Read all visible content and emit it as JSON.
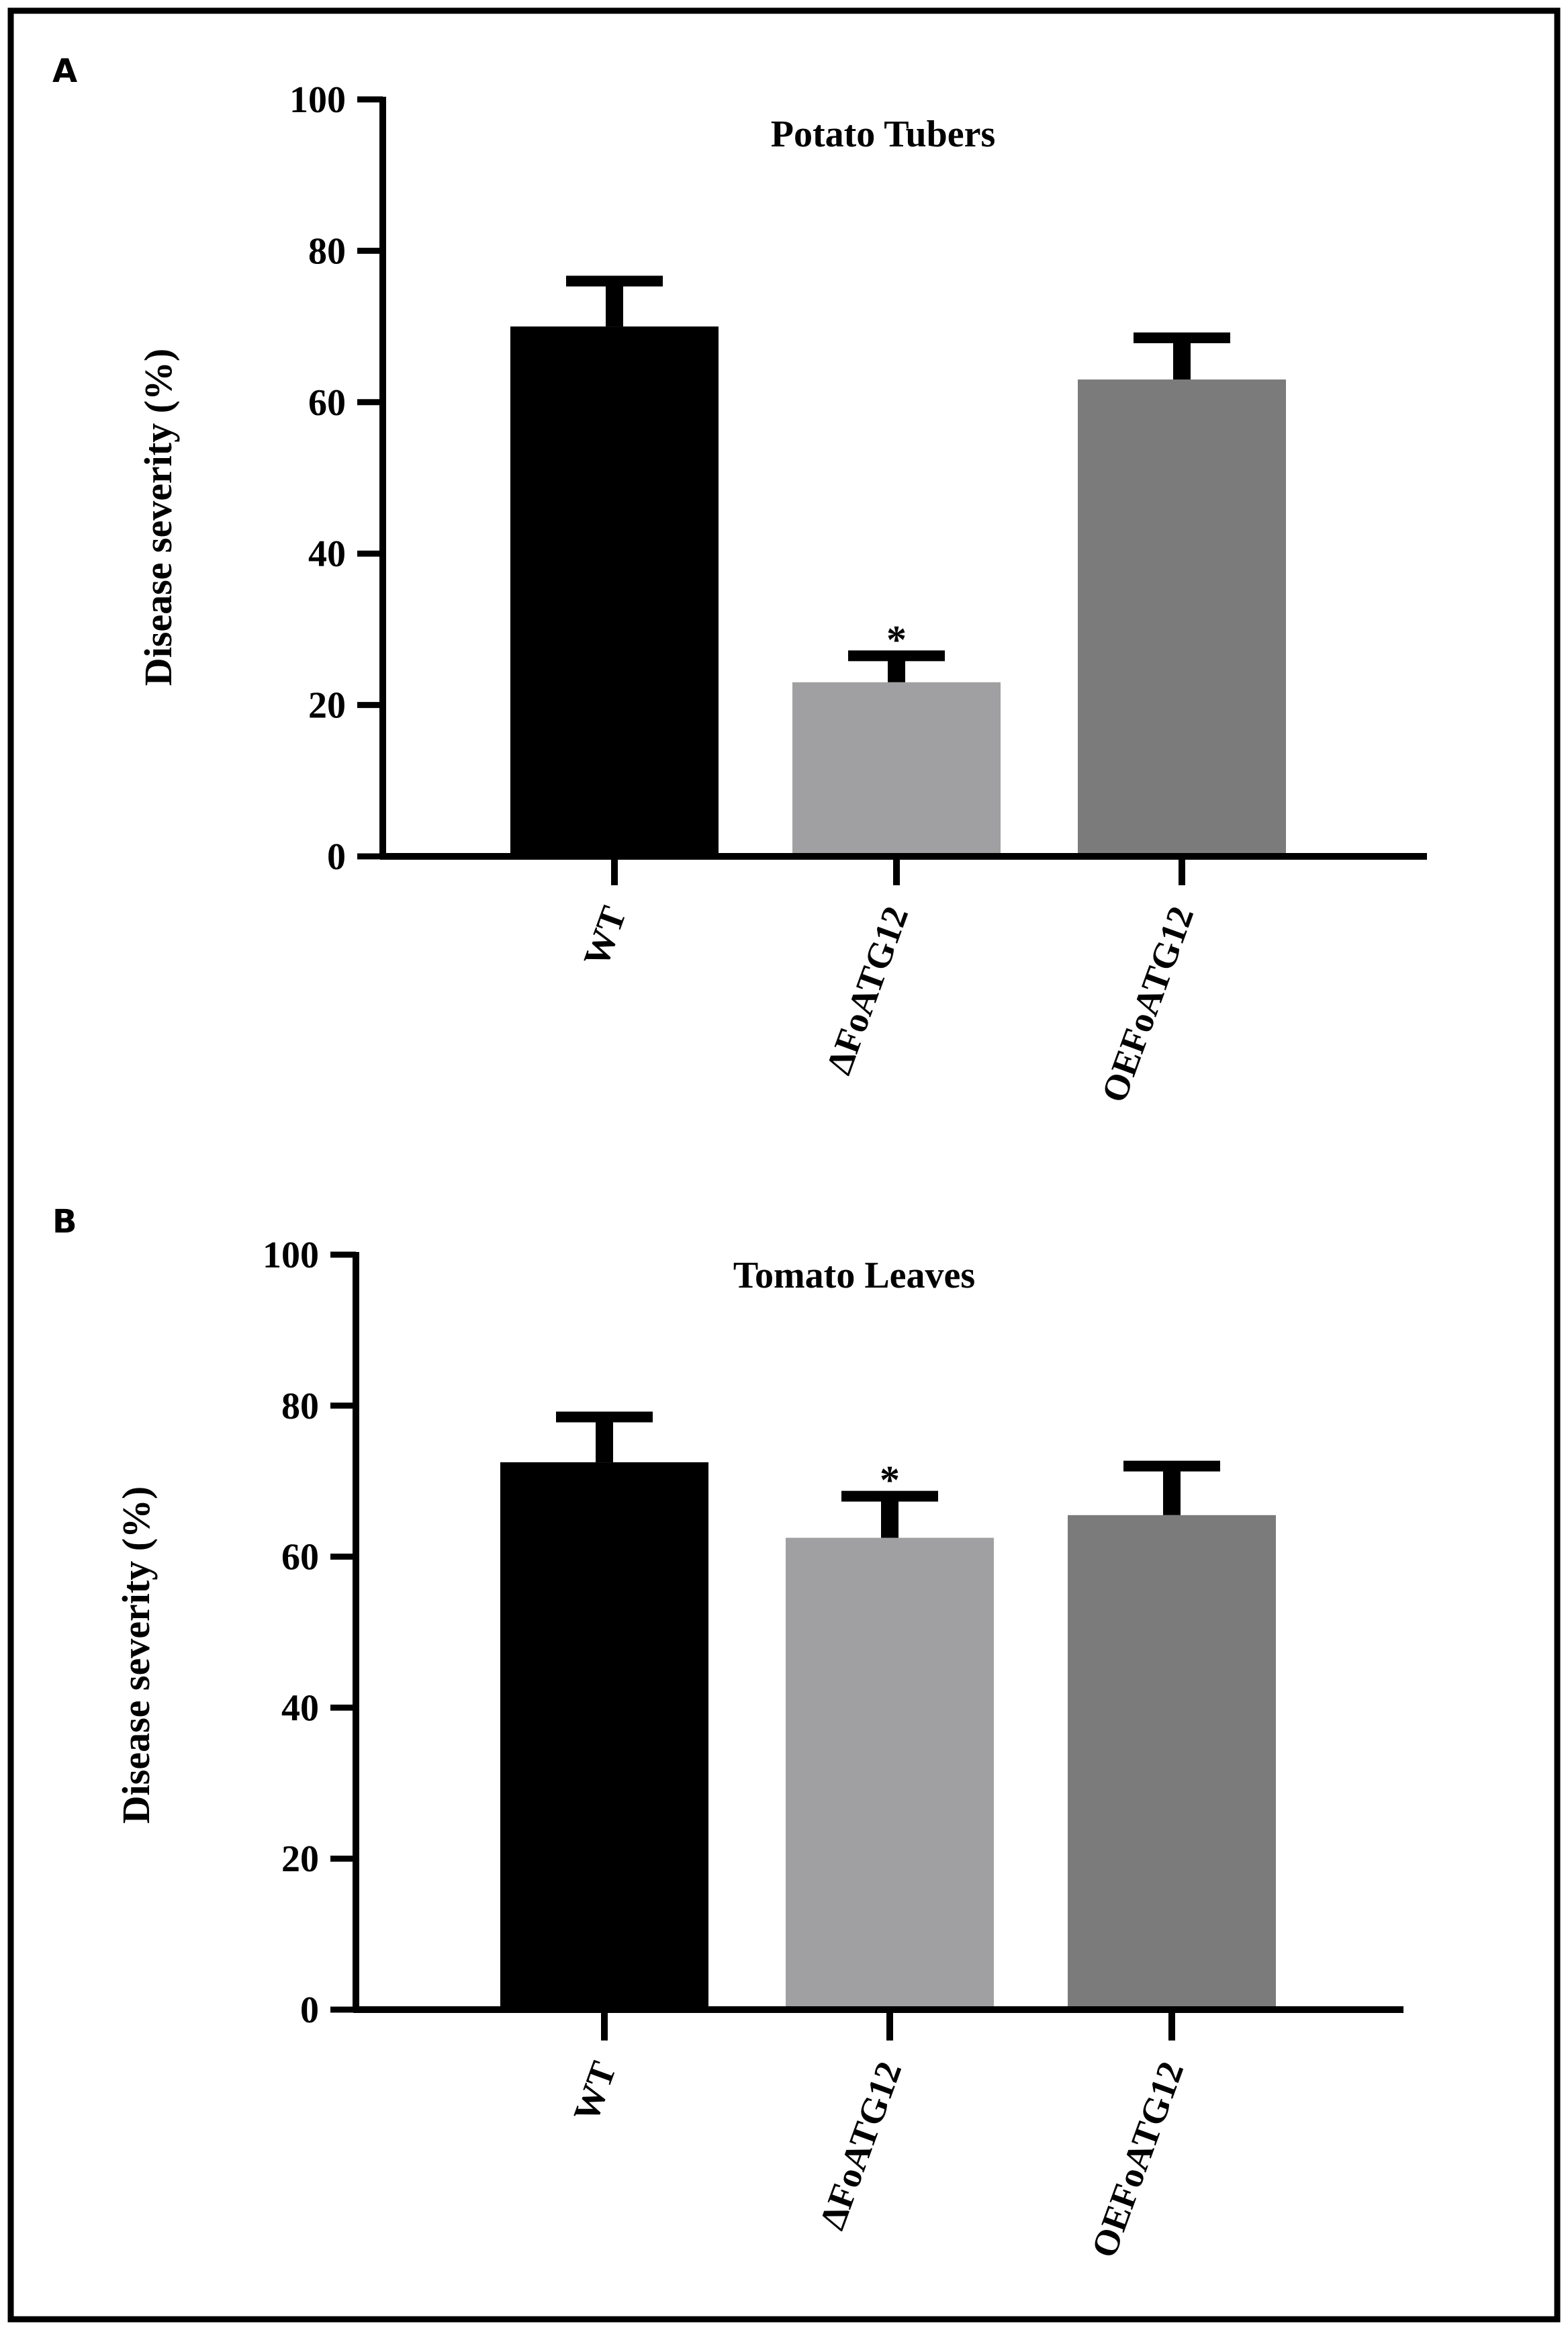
{
  "chart_data": [
    {
      "panel": "A",
      "type": "bar",
      "title": "Potato Tubers",
      "xlabel": "",
      "ylabel": "Disease severity (%)",
      "ylim": [
        0,
        100
      ],
      "yticks": [
        0,
        20,
        40,
        60,
        80,
        100
      ],
      "categories": [
        "WT",
        "ΔFoATG12",
        "OEFoATG12"
      ],
      "values": [
        70,
        23,
        63
      ],
      "errors": [
        6,
        3.5,
        5.5
      ],
      "annotations": [
        "",
        "*",
        ""
      ],
      "colors": [
        "#000000",
        "#a0a0a2",
        "#7b7b7b"
      ]
    },
    {
      "panel": "B",
      "type": "bar",
      "title": "Tomato Leaves",
      "xlabel": "",
      "ylabel": "Disease severity (%)",
      "ylim": [
        0,
        100
      ],
      "yticks": [
        0,
        20,
        40,
        60,
        80,
        100
      ],
      "categories": [
        "WT",
        "ΔFoATG12",
        "OEFoATG12"
      ],
      "values": [
        72.5,
        62.5,
        65.5
      ],
      "errors": [
        6,
        5.5,
        6.5
      ],
      "annotations": [
        "",
        "*",
        ""
      ],
      "colors": [
        "#000000",
        "#a0a0a2",
        "#7b7b7b"
      ]
    }
  ]
}
